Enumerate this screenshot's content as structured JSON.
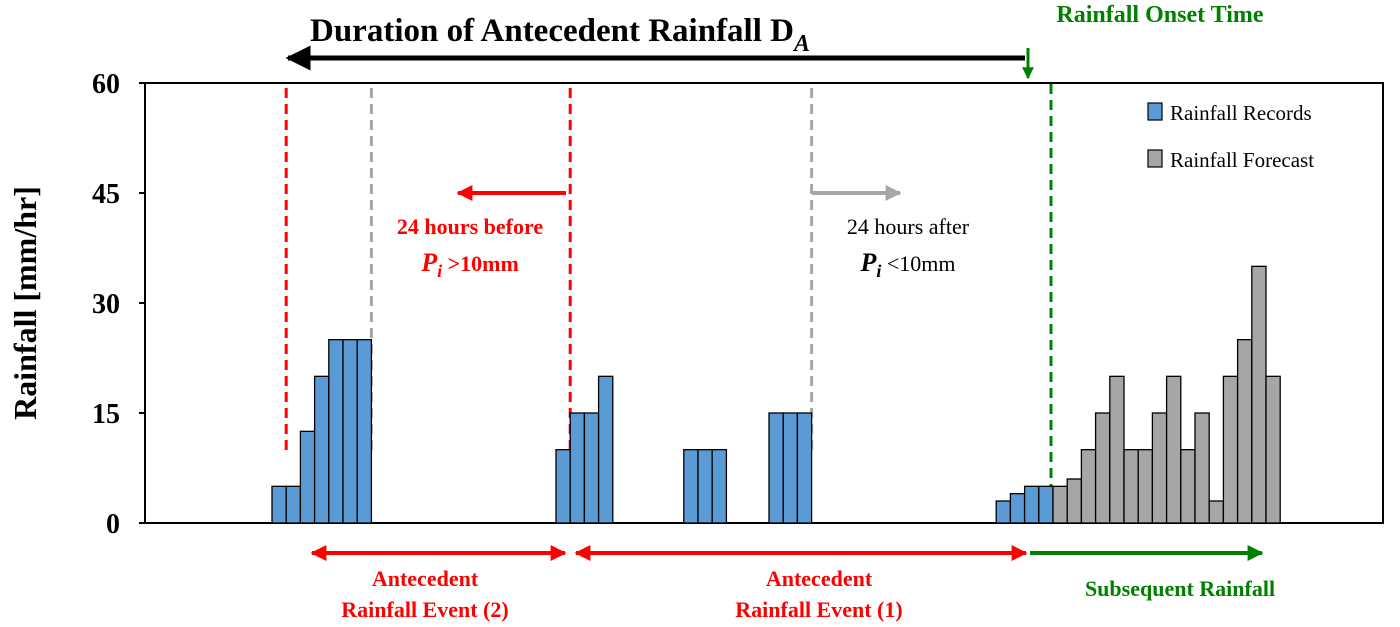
{
  "chart_data": {
    "type": "bar",
    "title": "Duration of Antecedent Rainfall D",
    "title_subscript": "A",
    "onset_label": "Rainfall Onset Time",
    "ylabel": "Rainfall [mm/hr]",
    "ylim": [
      0,
      60
    ],
    "yticks": [
      "0",
      "15",
      "30",
      "45",
      "60"
    ],
    "grid": false,
    "legend_position": "top-right",
    "series": [
      {
        "name": "Rainfall Records",
        "color": "#5b9bd5",
        "start_index": 0,
        "values": [
          5,
          5,
          12.5,
          20,
          25,
          25,
          25,
          0,
          0,
          0,
          0,
          0,
          0,
          0,
          0,
          0,
          0,
          0,
          0,
          0,
          10,
          15,
          15,
          20,
          0,
          0,
          0,
          0,
          0,
          10,
          10,
          10,
          0,
          0,
          0,
          15,
          15,
          15,
          0,
          0,
          0,
          0,
          0,
          0,
          0,
          0,
          0,
          0,
          0,
          0,
          0,
          3,
          4,
          5,
          5
        ]
      },
      {
        "name": "Rainfall Forecast",
        "color": "#a6a6a6",
        "start_index": 55,
        "values": [
          5,
          6,
          10,
          15,
          20,
          10,
          10,
          15,
          20,
          10,
          15,
          3,
          20,
          25,
          35,
          20
        ]
      }
    ],
    "annotations": {
      "before_line1": "24 hours before",
      "before_sym": "P",
      "before_sub": "i",
      "before_rest": " >10mm",
      "after_line1": "24 hours after",
      "after_sym": "P",
      "after_sub": "i",
      "after_rest": " <10mm",
      "event2_line1": "Antecedent",
      "event2_line2": "Rainfall Event (2)",
      "event1_line1": "Antecedent",
      "event1_line2": "Rainfall Event (1)",
      "subsequent": "Subsequent Rainfall"
    },
    "reference_lines": [
      {
        "bar_index": 1,
        "color": "#ff0000"
      },
      {
        "bar_index": 7,
        "color": "#a6a6a6"
      },
      {
        "bar_index": 21,
        "color": "#ff0000"
      },
      {
        "bar_index": 38,
        "color": "#a6a6a6"
      },
      {
        "bar_index": 55,
        "color": "#008000"
      }
    ]
  }
}
